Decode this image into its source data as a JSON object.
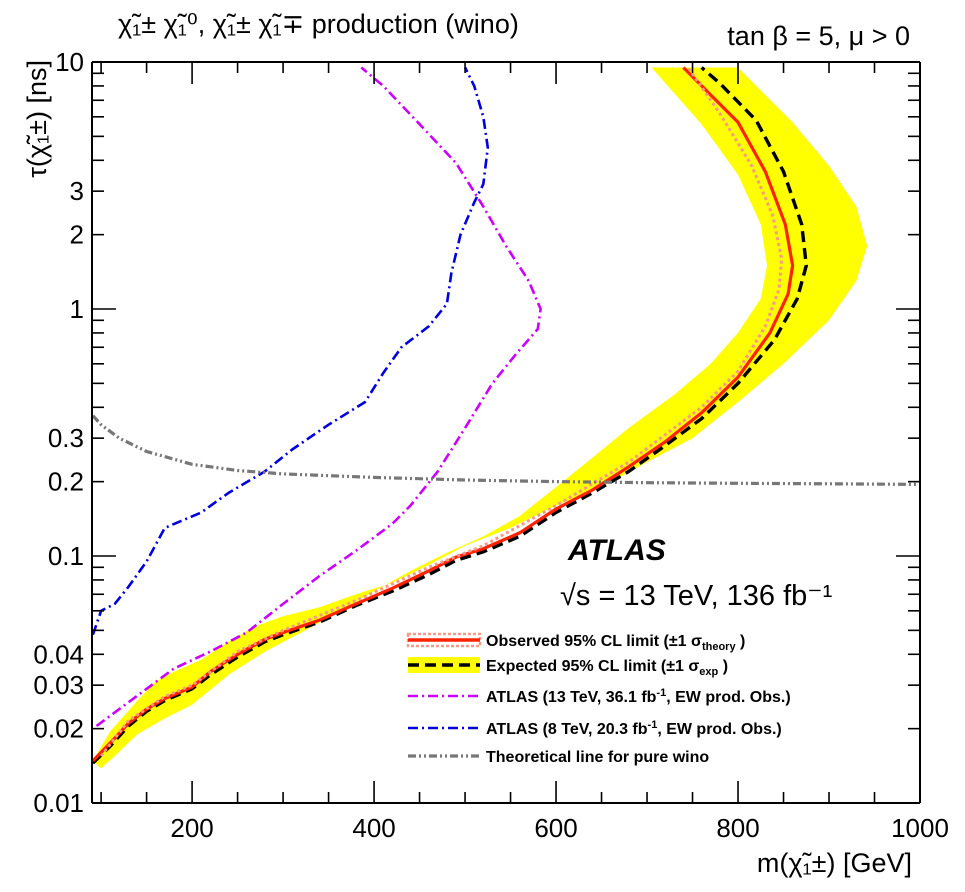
{
  "chart_data": {
    "type": "line",
    "title": "χ̃₁± χ̃₁⁰, χ̃₁± χ̃₁∓ production (wino)",
    "parameters": "tan β = 5, μ > 0",
    "experiment": "ATLAS",
    "energy_lumi": "√s = 13 TeV, 136 fb⁻¹",
    "xlabel": "m(χ̃₁±) [GeV]",
    "ylabel": "τ(χ̃₁±) [ns]",
    "xlim": [
      90,
      1000
    ],
    "ylim": [
      0.01,
      10
    ],
    "yscale": "log",
    "xticks": [
      200,
      400,
      600,
      800,
      1000
    ],
    "yticks": [
      {
        "value": 0.01,
        "label": "0.01"
      },
      {
        "value": 0.02,
        "label": "0.02"
      },
      {
        "value": 0.03,
        "label": "0.03"
      },
      {
        "value": 0.04,
        "label": "0.04"
      },
      {
        "value": 0.1,
        "label": "0.1"
      },
      {
        "value": 0.2,
        "label": "0.2"
      },
      {
        "value": 0.3,
        "label": "0.3"
      },
      {
        "value": 1,
        "label": "1"
      },
      {
        "value": 2,
        "label": "2"
      },
      {
        "value": 3,
        "label": "3"
      },
      {
        "value": 10,
        "label": "10"
      }
    ],
    "legend_position": "bottom-right",
    "series": [
      {
        "name": "Expected 95% CL limit (±1 σexp)",
        "legend_name": "Expected 95% CL limit (±1 σ",
        "legend_sub": "exp",
        "kind": "band",
        "color": "#ffff00",
        "upper": [
          [
            91,
            0.0148
          ],
          [
            110,
            0.0195
          ],
          [
            140,
            0.026
          ],
          [
            160,
            0.031
          ],
          [
            180,
            0.034
          ],
          [
            210,
            0.038
          ],
          [
            240,
            0.045
          ],
          [
            270,
            0.052
          ],
          [
            300,
            0.057
          ],
          [
            340,
            0.062
          ],
          [
            380,
            0.07
          ],
          [
            420,
            0.078
          ],
          [
            460,
            0.092
          ],
          [
            500,
            0.11
          ],
          [
            550,
            0.13
          ],
          [
            600,
            0.16
          ],
          [
            650,
            0.19
          ],
          [
            700,
            0.24
          ],
          [
            750,
            0.3
          ],
          [
            800,
            0.42
          ],
          [
            850,
            0.6
          ],
          [
            900,
            0.9
          ],
          [
            930,
            1.3
          ],
          [
            942,
            1.8
          ],
          [
            930,
            2.6
          ],
          [
            900,
            3.8
          ],
          [
            860,
            5.7
          ],
          [
            800,
            9.5
          ]
        ],
        "lower": [
          [
            705,
            9.5
          ],
          [
            760,
            5.6
          ],
          [
            800,
            3.5
          ],
          [
            825,
            2.2
          ],
          [
            832,
            1.5
          ],
          [
            825,
            1.1
          ],
          [
            800,
            0.8
          ],
          [
            770,
            0.6
          ],
          [
            730,
            0.45
          ],
          [
            680,
            0.33
          ],
          [
            640,
            0.25
          ],
          [
            600,
            0.19
          ],
          [
            560,
            0.145
          ],
          [
            520,
            0.12
          ],
          [
            480,
            0.103
          ],
          [
            440,
            0.087
          ],
          [
            400,
            0.072
          ],
          [
            360,
            0.059
          ],
          [
            320,
            0.049
          ],
          [
            280,
            0.041
          ],
          [
            240,
            0.033
          ],
          [
            200,
            0.025
          ],
          [
            170,
            0.022
          ],
          [
            140,
            0.019
          ],
          [
            115,
            0.0155
          ],
          [
            100,
            0.0138
          ]
        ]
      },
      {
        "name": "Expected 95% CL limit (±1 σexp)",
        "kind": "line",
        "style": "dashed",
        "color": "#000000",
        "points": [
          [
            91,
            0.0145
          ],
          [
            110,
            0.017
          ],
          [
            130,
            0.0205
          ],
          [
            150,
            0.0235
          ],
          [
            170,
            0.026
          ],
          [
            200,
            0.029
          ],
          [
            220,
            0.033
          ],
          [
            250,
            0.039
          ],
          [
            280,
            0.045
          ],
          [
            300,
            0.048
          ],
          [
            340,
            0.054
          ],
          [
            380,
            0.063
          ],
          [
            420,
            0.072
          ],
          [
            460,
            0.084
          ],
          [
            490,
            0.096
          ],
          [
            520,
            0.104
          ],
          [
            560,
            0.12
          ],
          [
            600,
            0.15
          ],
          [
            640,
            0.18
          ],
          [
            680,
            0.22
          ],
          [
            720,
            0.28
          ],
          [
            760,
            0.36
          ],
          [
            800,
            0.5
          ],
          [
            840,
            0.75
          ],
          [
            865,
            1.1
          ],
          [
            875,
            1.5
          ],
          [
            870,
            2.2
          ],
          [
            850,
            3.6
          ],
          [
            820,
            5.8
          ],
          [
            780,
            8.2
          ],
          [
            760,
            9.5
          ]
        ]
      },
      {
        "name": "Observed 95% CL limit (±1 σtheory)",
        "legend_name": "Observed 95% CL limit (±1 σ",
        "legend_sub": "theory",
        "kind": "line",
        "style": "solid",
        "color": "#ff2200",
        "points": [
          [
            91,
            0.0148
          ],
          [
            110,
            0.0175
          ],
          [
            130,
            0.021
          ],
          [
            150,
            0.024
          ],
          [
            170,
            0.0265
          ],
          [
            200,
            0.0295
          ],
          [
            220,
            0.034
          ],
          [
            250,
            0.04
          ],
          [
            280,
            0.046
          ],
          [
            300,
            0.049
          ],
          [
            340,
            0.055
          ],
          [
            380,
            0.064
          ],
          [
            420,
            0.074
          ],
          [
            460,
            0.087
          ],
          [
            490,
            0.099
          ],
          [
            520,
            0.107
          ],
          [
            560,
            0.124
          ],
          [
            600,
            0.155
          ],
          [
            640,
            0.185
          ],
          [
            680,
            0.23
          ],
          [
            720,
            0.29
          ],
          [
            760,
            0.38
          ],
          [
            800,
            0.53
          ],
          [
            835,
            0.8
          ],
          [
            855,
            1.15
          ],
          [
            860,
            1.5
          ],
          [
            852,
            2.2
          ],
          [
            830,
            3.6
          ],
          [
            800,
            5.7
          ],
          [
            760,
            8.0
          ],
          [
            740,
            9.5
          ]
        ]
      },
      {
        "name": "Observed 95% CL limit (±1 σtheory) band edge",
        "kind": "line",
        "style": "dotted",
        "color": "#f89888",
        "points": [
          [
            100,
            0.0155
          ],
          [
            130,
            0.0215
          ],
          [
            170,
            0.027
          ],
          [
            200,
            0.03
          ],
          [
            250,
            0.041
          ],
          [
            300,
            0.05
          ],
          [
            380,
            0.066
          ],
          [
            460,
            0.09
          ],
          [
            520,
            0.11
          ],
          [
            600,
            0.16
          ],
          [
            680,
            0.24
          ],
          [
            760,
            0.4
          ],
          [
            800,
            0.56
          ],
          [
            830,
            0.85
          ],
          [
            845,
            1.2
          ],
          [
            848,
            1.6
          ],
          [
            838,
            2.4
          ],
          [
            815,
            3.8
          ],
          [
            780,
            6.2
          ],
          [
            745,
            9.5
          ]
        ]
      },
      {
        "name": "ATLAS (13 TeV, 36.1 fb⁻¹, EW prod. Obs.)",
        "legend_name": "ATLAS (13 TeV, 36.1 fb",
        "legend_sup": "-1",
        "legend_tail": ", EW prod. Obs.)",
        "kind": "line",
        "style": "dashdot",
        "color": "#cc00ff",
        "points": [
          [
            95,
            0.0205
          ],
          [
            120,
            0.024
          ],
          [
            150,
            0.029
          ],
          [
            180,
            0.035
          ],
          [
            220,
            0.041
          ],
          [
            260,
            0.049
          ],
          [
            300,
            0.064
          ],
          [
            340,
            0.083
          ],
          [
            380,
            0.105
          ],
          [
            420,
            0.135
          ],
          [
            440,
            0.16
          ],
          [
            470,
            0.22
          ],
          [
            500,
            0.33
          ],
          [
            530,
            0.5
          ],
          [
            555,
            0.65
          ],
          [
            580,
            0.83
          ],
          [
            583,
            1.0
          ],
          [
            570,
            1.3
          ],
          [
            545,
            1.8
          ],
          [
            520,
            2.6
          ],
          [
            490,
            3.9
          ],
          [
            450,
            5.6
          ],
          [
            410,
            8.0
          ],
          [
            386,
            9.5
          ]
        ]
      },
      {
        "name": "ATLAS (8 TeV, 20.3 fb⁻¹, EW prod. Obs.)",
        "legend_name": "ATLAS (8 TeV, 20.3 fb",
        "legend_sup": "-1",
        "legend_tail": ", EW prod. Obs.)",
        "kind": "line",
        "style": "dashdot",
        "color": "#0000dd",
        "points": [
          [
            91,
            0.048
          ],
          [
            100,
            0.06
          ],
          [
            115,
            0.064
          ],
          [
            130,
            0.075
          ],
          [
            150,
            0.095
          ],
          [
            170,
            0.13
          ],
          [
            210,
            0.15
          ],
          [
            240,
            0.18
          ],
          [
            280,
            0.22
          ],
          [
            310,
            0.27
          ],
          [
            350,
            0.34
          ],
          [
            390,
            0.42
          ],
          [
            410,
            0.55
          ],
          [
            430,
            0.7
          ],
          [
            460,
            0.85
          ],
          [
            480,
            1.05
          ],
          [
            485,
            1.4
          ],
          [
            495,
            2.0
          ],
          [
            510,
            2.7
          ],
          [
            520,
            3.2
          ],
          [
            525,
            4.5
          ],
          [
            520,
            6.0
          ],
          [
            510,
            8.0
          ],
          [
            500,
            9.5
          ]
        ]
      },
      {
        "name": "Theoretical line for pure wino",
        "kind": "line",
        "style": "dashdotdot",
        "color": "#777777",
        "points": [
          [
            91,
            0.37
          ],
          [
            100,
            0.34
          ],
          [
            120,
            0.3
          ],
          [
            150,
            0.265
          ],
          [
            200,
            0.235
          ],
          [
            250,
            0.222
          ],
          [
            300,
            0.215
          ],
          [
            400,
            0.208
          ],
          [
            500,
            0.203
          ],
          [
            600,
            0.2
          ],
          [
            700,
            0.198
          ],
          [
            800,
            0.197
          ],
          [
            900,
            0.196
          ],
          [
            1000,
            0.195
          ]
        ]
      }
    ]
  }
}
